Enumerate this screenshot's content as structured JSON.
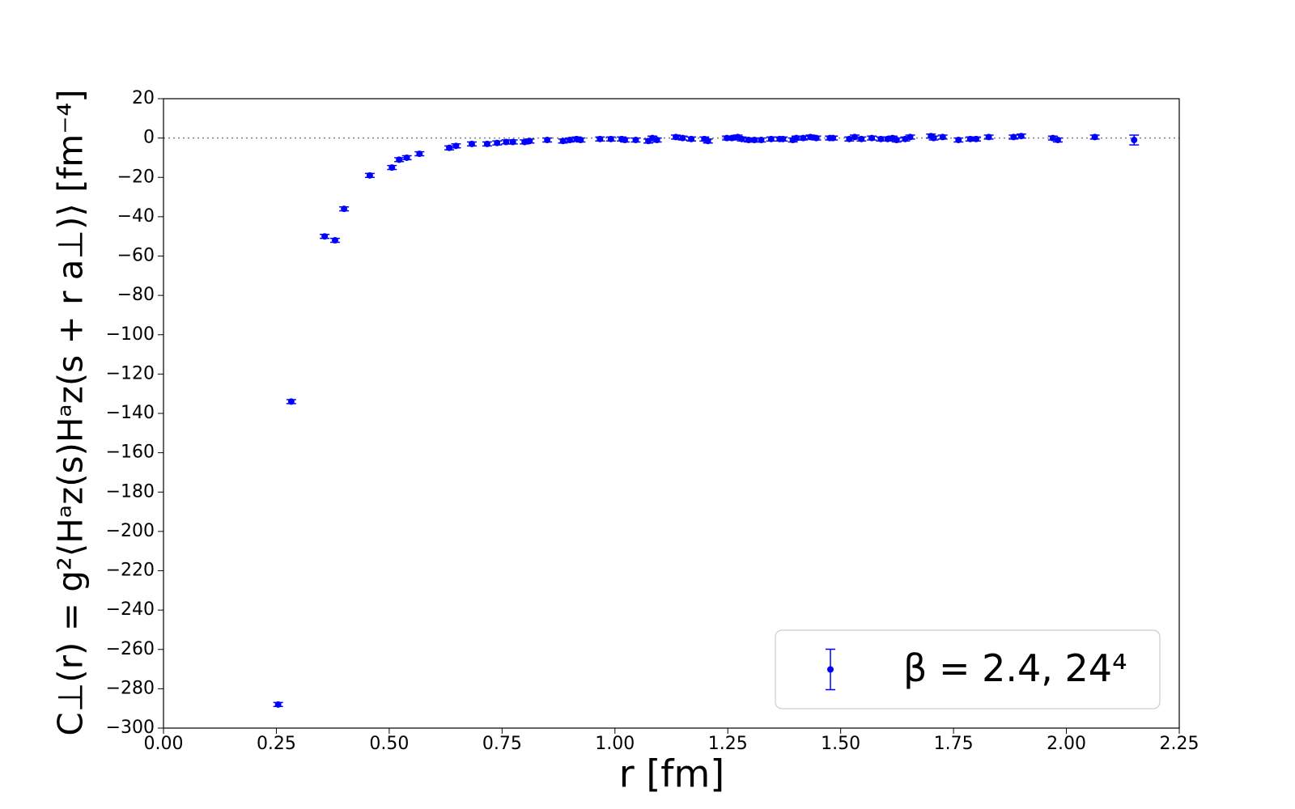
{
  "chart_data": {
    "type": "scatter",
    "xlabel": "r [fm]",
    "ylabel": "C⊥(r) = g²⟨Hᵃz(s)Hᵃz(s + r a⊥)⟩ [fm⁻⁴]",
    "x": [
      0.254,
      0.283,
      0.357,
      0.38,
      0.4,
      0.457,
      0.506,
      0.522,
      0.539,
      0.567,
      0.633,
      0.648,
      0.683,
      0.717,
      0.739,
      0.759,
      0.774,
      0.8,
      0.811,
      0.85,
      0.885,
      0.9,
      0.915,
      0.924,
      0.967,
      0.991,
      1.015,
      1.022,
      1.046,
      1.074,
      1.083,
      1.093,
      1.135,
      1.15,
      1.169,
      1.198,
      1.206,
      1.248,
      1.259,
      1.272,
      1.281,
      1.296,
      1.309,
      1.324,
      1.346,
      1.365,
      1.372,
      1.394,
      1.402,
      1.417,
      1.433,
      1.446,
      1.476,
      1.483,
      1.519,
      1.531,
      1.546,
      1.569,
      1.589,
      1.604,
      1.615,
      1.624,
      1.643,
      1.654,
      1.7,
      1.706,
      1.726,
      1.761,
      1.787,
      1.8,
      1.828,
      1.883,
      1.9,
      1.97,
      1.981,
      2.063,
      2.15
    ],
    "series": [
      {
        "name": "β = 2.4, 24⁴",
        "color": "#0000ff",
        "values": [
          -288,
          -134,
          -50,
          -52,
          -36,
          -19,
          -15,
          -11,
          -10,
          -8,
          -5,
          -4,
          -3,
          -3,
          -2.5,
          -2,
          -2,
          -2,
          -1.5,
          -1,
          -1.5,
          -1,
          -0.5,
          -1,
          -0.5,
          -0.5,
          -0.5,
          -1,
          -1,
          -1.5,
          0,
          -1,
          0.5,
          0,
          -0.5,
          -0.5,
          -1.5,
          0,
          0,
          0.5,
          -0.5,
          -1,
          -1,
          -1,
          -0.5,
          -0.5,
          -0.5,
          -1,
          0,
          0,
          0.5,
          0,
          0,
          0,
          -0.5,
          0.5,
          -0.5,
          0,
          -0.5,
          -0.5,
          0,
          -1,
          -0.5,
          0.5,
          1,
          0,
          0.5,
          -1,
          -0.5,
          -0.5,
          0.5,
          0.5,
          1,
          0,
          -1,
          0.5,
          -1
        ],
        "yerr": [
          1,
          1,
          1,
          1,
          1,
          1,
          1,
          1,
          1,
          1,
          1,
          1,
          1,
          1,
          1,
          1,
          1,
          1,
          1,
          1,
          1,
          1,
          1,
          1,
          1,
          1,
          1,
          1,
          1,
          1,
          1,
          1,
          1,
          1,
          1,
          1,
          1,
          1,
          1,
          1,
          1,
          1,
          1,
          1,
          1,
          1,
          1,
          1,
          1,
          1,
          1,
          1,
          1,
          1,
          1,
          1,
          1,
          1,
          1,
          1,
          1,
          1,
          1,
          1,
          1,
          1,
          1,
          1,
          1,
          1,
          1,
          1,
          1,
          1,
          1,
          1,
          2.5
        ]
      }
    ],
    "xlim": [
      0,
      2.25
    ],
    "xticks": [
      {
        "value": 0,
        "label": "0.00"
      },
      0.25,
      {
        "value": 0.5,
        "label": "0.50"
      },
      0.75,
      {
        "value": 1,
        "label": "1.00"
      },
      1.25,
      {
        "value": 1.5,
        "label": "1.50"
      },
      1.75,
      {
        "value": 2,
        "label": "2.00"
      },
      2.25
    ],
    "ylim": [
      -300,
      20
    ],
    "yticks": [
      {
        "value": -300,
        "label": "−300"
      },
      {
        "value": -280,
        "label": "−280"
      },
      {
        "value": -260,
        "label": "−260"
      },
      {
        "value": -240,
        "label": "−240"
      },
      {
        "value": -220,
        "label": "−220"
      },
      {
        "value": -200,
        "label": "−200"
      },
      {
        "value": -180,
        "label": "−180"
      },
      {
        "value": -160,
        "label": "−160"
      },
      {
        "value": -140,
        "label": "−140"
      },
      {
        "value": -120,
        "label": "−120"
      },
      {
        "value": -100,
        "label": "−100"
      },
      {
        "value": -80,
        "label": "−80"
      },
      {
        "value": -60,
        "label": "−60"
      },
      {
        "value": -40,
        "label": "−40"
      },
      {
        "value": -20,
        "label": "−20"
      },
      0,
      20
    ],
    "zero_line": true,
    "legend": "lower right"
  }
}
